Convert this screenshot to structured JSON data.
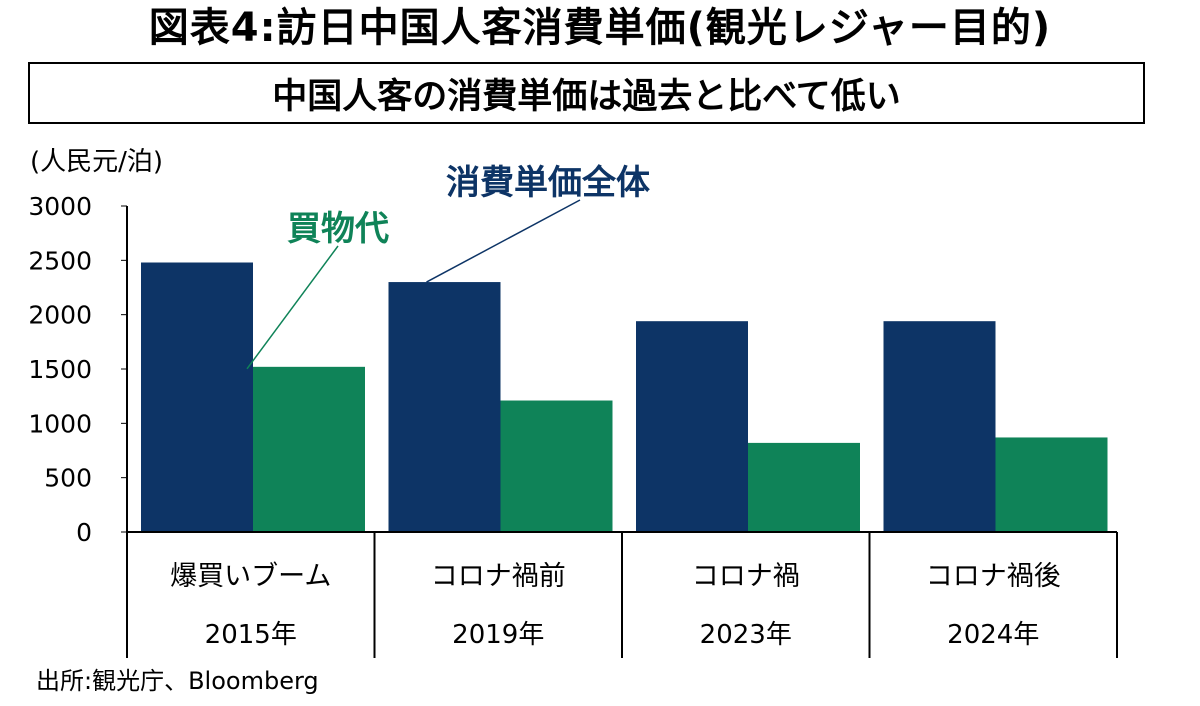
{
  "title": "図表4:訪日中国人客消費単価(観光レジャー目的)",
  "subtitle": "中国人客の消費単価は過去と比べて低い",
  "source": "出所:観光庁、Bloomberg",
  "colors": {
    "total": "#0d3466",
    "shopping": "#0f8358",
    "axis": "#000000"
  },
  "chart_data": {
    "type": "bar",
    "ylabel": "(人民元/泊)",
    "ylim": [
      0,
      3000
    ],
    "yticks": [
      0,
      500,
      1000,
      1500,
      2000,
      2500,
      3000
    ],
    "categories": [
      {
        "label": "爆買いブーム",
        "year": "2015年"
      },
      {
        "label": "コロナ禍前",
        "year": "2019年"
      },
      {
        "label": "コロナ禍",
        "year": "2023年"
      },
      {
        "label": "コロナ禍後",
        "year": "2024年"
      }
    ],
    "series": [
      {
        "name": "消費単価全体",
        "color": "#0d3466",
        "values": [
          2480,
          2300,
          1940,
          1940
        ]
      },
      {
        "name": "買物代",
        "color": "#0f8358",
        "values": [
          1520,
          1210,
          820,
          870
        ]
      }
    ],
    "annotations": [
      {
        "text": "消費単価全体",
        "series": "消費単価全体",
        "category_index": 1
      },
      {
        "text": "買物代",
        "series": "買物代",
        "category_index": 0
      }
    ]
  }
}
